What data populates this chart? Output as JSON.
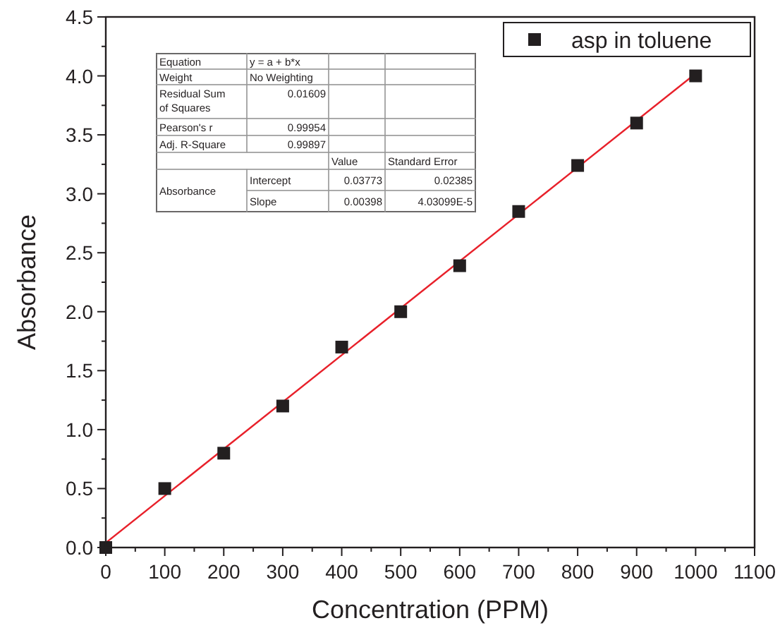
{
  "chart_data": {
    "type": "scatter",
    "xlabel": "Concentration (PPM)",
    "ylabel": "Absorbance",
    "xlim": [
      0,
      1100
    ],
    "xticks": [
      0,
      100,
      200,
      300,
      400,
      500,
      600,
      700,
      800,
      900,
      1000,
      1100
    ],
    "ylim": [
      0,
      4.5
    ],
    "yticks": [
      {
        "value": 0,
        "label": "0.0"
      },
      {
        "value": 0.5,
        "label": "0.5"
      },
      {
        "value": 1,
        "label": "1.0"
      },
      {
        "value": 1.5,
        "label": "1.5"
      },
      {
        "value": 2,
        "label": "2.0"
      },
      {
        "value": 2.5,
        "label": "2.5"
      },
      {
        "value": 3,
        "label": "3.0"
      },
      {
        "value": 3.5,
        "label": "3.5"
      },
      {
        "value": 4,
        "label": "4.0"
      },
      {
        "value": 4.5,
        "label": "4.5"
      }
    ],
    "series": [
      {
        "name": "asp in toluene",
        "color": "#231f20",
        "marker": "square",
        "x": [
          0,
          100,
          200,
          300,
          400,
          500,
          600,
          700,
          800,
          900,
          1000
        ],
        "values": [
          0,
          0.5,
          0.8,
          1.2,
          1.7,
          2.0,
          2.39,
          2.85,
          3.24,
          3.6,
          4.0
        ]
      },
      {
        "type": "line",
        "color": "#e8202a",
        "x": [
          0,
          1000
        ],
        "values": [
          0.04,
          4.02
        ]
      }
    ],
    "legend": "top right",
    "grid": false,
    "annotations": [
      "Equation",
      "y = a + b*x",
      "Weight",
      "No Weighting",
      "Residual Sum of Squares",
      "0.01609",
      "Pearson's r",
      "0.99954",
      "Adj. R-Square",
      "0.99897",
      "Value",
      "Standard Error",
      "Absorbance",
      "Intercept",
      "0.03773",
      "0.02385",
      "Slope",
      "0.00398",
      "4.03099E-5"
    ]
  }
}
